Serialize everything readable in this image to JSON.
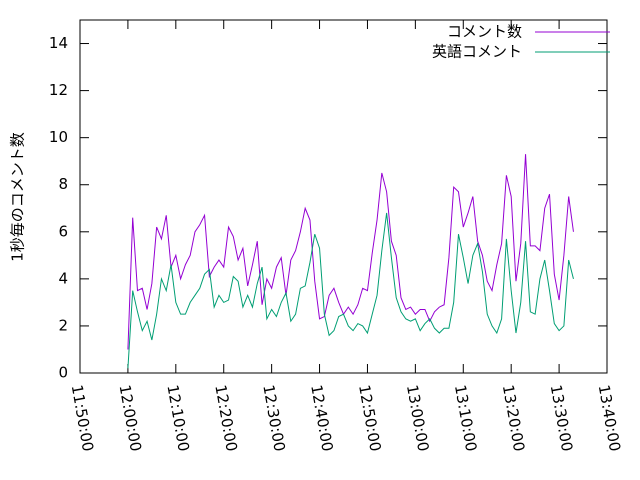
{
  "chart_data": {
    "type": "line",
    "y_label": "1秒毎のコメント数",
    "x": [
      "12:00:00",
      "12:01:00",
      "12:02:00",
      "12:03:00",
      "12:04:00",
      "12:05:00",
      "12:06:00",
      "12:07:00",
      "12:08:00",
      "12:09:00",
      "12:10:00",
      "12:11:00",
      "12:12:00",
      "12:13:00",
      "12:14:00",
      "12:15:00",
      "12:16:00",
      "12:17:00",
      "12:18:00",
      "12:19:00",
      "12:20:00",
      "12:21:00",
      "12:22:00",
      "12:23:00",
      "12:24:00",
      "12:25:00",
      "12:26:00",
      "12:27:00",
      "12:28:00",
      "12:29:00",
      "12:30:00",
      "12:31:00",
      "12:32:00",
      "12:33:00",
      "12:34:00",
      "12:35:00",
      "12:36:00",
      "12:37:00",
      "12:38:00",
      "12:39:00",
      "12:40:00",
      "12:41:00",
      "12:42:00",
      "12:43:00",
      "12:44:00",
      "12:45:00",
      "12:46:00",
      "12:47:00",
      "12:48:00",
      "12:49:00",
      "12:50:00",
      "12:51:00",
      "12:52:00",
      "12:53:00",
      "12:54:00",
      "12:55:00",
      "12:56:00",
      "12:57:00",
      "12:58:00",
      "12:59:00",
      "13:00:00",
      "13:01:00",
      "13:02:00",
      "13:03:00",
      "13:04:00",
      "13:05:00",
      "13:06:00",
      "13:07:00",
      "13:08:00",
      "13:09:00",
      "13:10:00",
      "13:11:00",
      "13:12:00",
      "13:13:00",
      "13:14:00",
      "13:15:00",
      "13:16:00",
      "13:17:00",
      "13:18:00",
      "13:19:00",
      "13:20:00",
      "13:21:00",
      "13:22:00",
      "13:23:00",
      "13:24:00",
      "13:25:00",
      "13:26:00",
      "13:27:00",
      "13:28:00",
      "13:29:00",
      "13:30:00",
      "13:31:00",
      "13:32:00",
      "13:33:00"
    ],
    "series": [
      {
        "name": "コメント数",
        "color": "#9400d3",
        "values": [
          1.0,
          6.6,
          3.5,
          3.6,
          2.7,
          3.8,
          6.2,
          5.7,
          6.7,
          4.5,
          5.0,
          4.0,
          4.6,
          5.0,
          6.0,
          6.3,
          6.7,
          4.1,
          4.5,
          4.8,
          4.5,
          6.2,
          5.8,
          4.8,
          5.3,
          3.7,
          4.6,
          5.6,
          2.9,
          4.0,
          3.6,
          4.5,
          4.9,
          3.3,
          4.8,
          5.2,
          6.0,
          7.0,
          6.5,
          3.9,
          2.3,
          2.4,
          3.3,
          3.6,
          3.0,
          2.5,
          2.8,
          2.5,
          2.9,
          3.6,
          3.5,
          5.1,
          6.5,
          8.5,
          7.7,
          5.6,
          5.0,
          3.2,
          2.7,
          2.8,
          2.5,
          2.7,
          2.7,
          2.2,
          2.6,
          2.8,
          2.9,
          4.9,
          7.9,
          7.7,
          6.2,
          6.8,
          7.5,
          5.6,
          5.0,
          3.9,
          3.5,
          4.6,
          5.5,
          8.4,
          7.5,
          3.9,
          5.5,
          9.3,
          5.4,
          5.4,
          5.2,
          7.0,
          7.6,
          4.2,
          3.1,
          5.0,
          7.5,
          6.0
        ]
      },
      {
        "name": "英語コメント",
        "color": "#009e73",
        "values": [
          0.2,
          3.5,
          2.6,
          1.8,
          2.2,
          1.4,
          2.5,
          4.0,
          3.5,
          4.6,
          3.0,
          2.5,
          2.5,
          3.0,
          3.3,
          3.6,
          4.2,
          4.4,
          2.8,
          3.3,
          3.0,
          3.1,
          4.1,
          3.9,
          2.8,
          3.3,
          2.8,
          3.8,
          4.5,
          2.3,
          2.7,
          2.4,
          3.0,
          3.4,
          2.2,
          2.5,
          3.6,
          3.7,
          4.7,
          5.9,
          5.3,
          2.5,
          1.6,
          1.8,
          2.4,
          2.5,
          2.0,
          1.8,
          2.1,
          2.0,
          1.7,
          2.5,
          3.3,
          5.2,
          6.8,
          4.9,
          3.2,
          2.6,
          2.3,
          2.2,
          2.3,
          1.8,
          2.1,
          2.3,
          1.9,
          1.7,
          1.9,
          1.9,
          3.0,
          5.9,
          4.9,
          3.8,
          5.0,
          5.5,
          4.3,
          2.5,
          2.0,
          1.7,
          2.3,
          5.7,
          3.5,
          1.7,
          3.0,
          5.6,
          2.6,
          2.5,
          4.0,
          4.8,
          3.5,
          2.1,
          1.8,
          2.0,
          4.8,
          4.0
        ]
      }
    ],
    "xlim": [
      "11:50:00",
      "13:40:00"
    ],
    "xticks": [
      "11:50:00",
      "12:00:00",
      "12:10:00",
      "12:20:00",
      "12:30:00",
      "12:40:00",
      "12:50:00",
      "13:00:00",
      "13:10:00",
      "13:20:00",
      "13:30:00",
      "13:40:00"
    ],
    "ylim": [
      0,
      15
    ],
    "yticks": [
      0,
      2,
      4,
      6,
      8,
      10,
      12,
      14
    ],
    "legend": "top-right",
    "grid": false
  }
}
